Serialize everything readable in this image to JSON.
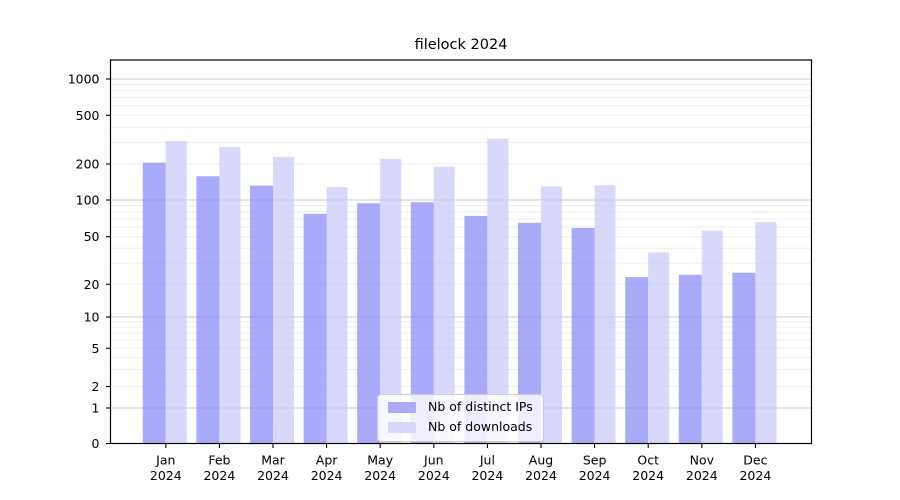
{
  "title": "filelock 2024",
  "chart_data": {
    "type": "bar",
    "title": "filelock 2024",
    "categories": [
      "Jan",
      "Feb",
      "Mar",
      "Apr",
      "May",
      "Jun",
      "Jul",
      "Aug",
      "Sep",
      "Oct",
      "Nov",
      "Dec"
    ],
    "year_label": "2024",
    "series": [
      {
        "name": "Nb of distinct IPs",
        "color": "#8686f8",
        "swatch": "#aaaaf8",
        "values": [
          205,
          158,
          132,
          77,
          94,
          96,
          74,
          65,
          59,
          23,
          24,
          25
        ]
      },
      {
        "name": "Nb of downloads",
        "color": "#c7c7f8",
        "swatch": "#d8d8fa",
        "values": [
          308,
          275,
          228,
          128,
          220,
          190,
          322,
          130,
          133,
          37,
          56,
          66
        ]
      }
    ],
    "yscale": "symlog",
    "ylim": [
      0,
      1437
    ],
    "yticks": [
      0,
      1,
      2,
      5,
      10,
      20,
      50,
      100,
      200,
      500,
      1000
    ],
    "grid": true,
    "legend_position": "lower center",
    "bar_alpha": 0.7,
    "style": {
      "background": "#ffffff",
      "axis_color": "#000000",
      "grid_major": "#c9c9c9",
      "grid_minor": "#ededed",
      "tick_label_color": "#000000"
    }
  }
}
